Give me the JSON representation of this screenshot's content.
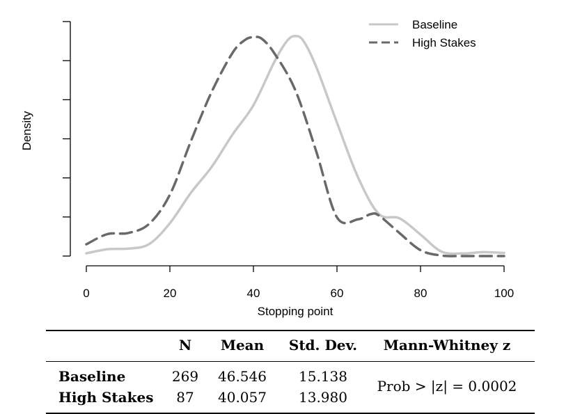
{
  "chart_data": {
    "type": "line",
    "title": "",
    "xlabel": "Stopping point",
    "ylabel": "Density",
    "xlim": [
      0,
      100
    ],
    "x_ticks": [
      "0",
      "20",
      "40",
      "60",
      "80",
      "100"
    ],
    "x_tick_values": [
      0,
      20,
      40,
      60,
      80,
      100
    ],
    "y_ticks_labeled": false,
    "y_tick_count": 7,
    "grid": false,
    "legend_position": "top-right",
    "series": [
      {
        "name": "Baseline",
        "color": "#c8c8c8",
        "line_style": "solid",
        "x": [
          0,
          5,
          10,
          15,
          20,
          25,
          30,
          35,
          40,
          45,
          48,
          50,
          52,
          55,
          60,
          65,
          70,
          75,
          80,
          85,
          90,
          95,
          100
        ],
        "y": [
          0.0014,
          0.0035,
          0.0038,
          0.0061,
          0.0168,
          0.0323,
          0.0456,
          0.0622,
          0.0772,
          0.0994,
          0.11,
          0.1126,
          0.11,
          0.097,
          0.0683,
          0.0405,
          0.0216,
          0.0193,
          0.011,
          0.0023,
          0.0013,
          0.002,
          0.0016
        ]
      },
      {
        "name": "High Stakes",
        "color": "#696969",
        "line_style": "dashed",
        "x": [
          0,
          5,
          10,
          15,
          20,
          25,
          30,
          35,
          38,
          40,
          42,
          45,
          50,
          55,
          60,
          65,
          68,
          70,
          75,
          80,
          85,
          90,
          95,
          100
        ],
        "y": [
          0.006,
          0.0112,
          0.0118,
          0.0164,
          0.0314,
          0.0586,
          0.084,
          0.104,
          0.1106,
          0.112,
          0.1112,
          0.1038,
          0.085,
          0.0538,
          0.0198,
          0.0188,
          0.0214,
          0.0208,
          0.0117,
          0.003,
          0.0003,
          0.0,
          0.0,
          0.0
        ]
      }
    ]
  },
  "table": {
    "headers": [
      "",
      "N",
      "Mean",
      "Std. Dev.",
      "Mann-Whitney z"
    ],
    "rows": [
      {
        "label": "Baseline",
        "n": "269",
        "mean": "46.546",
        "sd": "15.138"
      },
      {
        "label": "High Stakes",
        "n": "87",
        "mean": "40.057",
        "sd": "13.980"
      }
    ],
    "mann_whitney": "Prob > |z| = 0.0002"
  }
}
